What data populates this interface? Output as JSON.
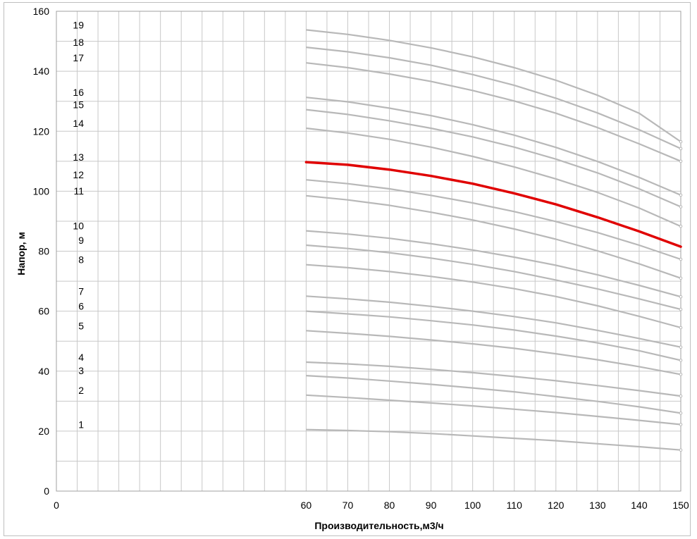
{
  "chart_data": {
    "type": "line",
    "title": "",
    "xlabel": "Производительность,м3/ч",
    "ylabel": "Напор, м",
    "xlim": [
      0,
      150
    ],
    "ylim": [
      0,
      160
    ],
    "grid": true,
    "x_ticks": [
      0,
      60,
      70,
      80,
      90,
      100,
      110,
      120,
      130,
      140,
      150
    ],
    "y_ticks": [
      0,
      20,
      40,
      60,
      80,
      100,
      120,
      140,
      160
    ],
    "x": [
      60,
      70,
      80,
      90,
      100,
      110,
      120,
      130,
      140,
      150
    ],
    "highlight_color": "#e00000",
    "line_color": "#b8b8b8",
    "series": [
      {
        "name": "1",
        "values": [
          20.5,
          20.2,
          19.8,
          19.2,
          18.4,
          17.6,
          16.8,
          15.8,
          14.8,
          13.7
        ]
      },
      {
        "name": "2",
        "values": [
          32,
          31.2,
          30.3,
          29.4,
          28.4,
          27.3,
          26.2,
          24.9,
          23.6,
          22.2
        ]
      },
      {
        "name": "3",
        "values": [
          38.5,
          37.7,
          36.7,
          35.6,
          34.4,
          33.1,
          31.5,
          29.9,
          28.1,
          26
        ]
      },
      {
        "name": "4",
        "values": [
          43,
          42.4,
          41.6,
          40.6,
          39.5,
          38.2,
          36.8,
          35.2,
          33.5,
          31.7
        ]
      },
      {
        "name": "5",
        "values": [
          53.5,
          52.6,
          51.6,
          50.4,
          49.1,
          47.6,
          45.8,
          43.8,
          41.5,
          38.9
        ]
      },
      {
        "name": "6",
        "values": [
          60,
          59.1,
          58.1,
          56.8,
          55.4,
          53.7,
          51.7,
          49.4,
          46.8,
          43.6
        ]
      },
      {
        "name": "7",
        "values": [
          65,
          64.1,
          63,
          61.6,
          60,
          58.2,
          56.1,
          53.6,
          50.9,
          48
        ]
      },
      {
        "name": "8",
        "values": [
          75.5,
          74.5,
          73.2,
          71.6,
          69.7,
          67.5,
          64.9,
          61.8,
          58.3,
          54.5
        ]
      },
      {
        "name": "9",
        "values": [
          82,
          80.9,
          79.5,
          77.7,
          75.6,
          73.2,
          70.4,
          67.4,
          64.1,
          60.6
        ]
      },
      {
        "name": "10",
        "values": [
          86.8,
          85.7,
          84.3,
          82.5,
          80.4,
          78,
          75.3,
          72.1,
          68.6,
          64.8
        ]
      },
      {
        "name": "11",
        "values": [
          98.5,
          97.1,
          95.3,
          93,
          90.4,
          87.4,
          84,
          80.1,
          75.8,
          71
        ]
      },
      {
        "name": "12",
        "values": [
          103.8,
          102.5,
          100.8,
          98.6,
          96.1,
          93.2,
          89.9,
          86.2,
          82,
          77.3
        ]
      },
      {
        "name": "13",
        "values": [
          109.7,
          108.8,
          107.2,
          105.1,
          102.5,
          99.3,
          95.6,
          91.3,
          86.6,
          81.5
        ],
        "highlight": true
      },
      {
        "name": "14",
        "values": [
          121,
          119.4,
          117.3,
          114.7,
          111.6,
          108.1,
          104.1,
          99.6,
          94.4,
          88.3
        ]
      },
      {
        "name": "15",
        "values": [
          127.2,
          125.6,
          123.5,
          121,
          118.1,
          114.7,
          110.7,
          106.1,
          100.8,
          94.8
        ]
      },
      {
        "name": "16",
        "values": [
          131.3,
          129.8,
          127.7,
          125.2,
          122.2,
          118.7,
          114.6,
          109.9,
          104.6,
          98.7
        ]
      },
      {
        "name": "17",
        "values": [
          142.8,
          141.2,
          139.1,
          136.6,
          133.6,
          130.1,
          126,
          121.2,
          115.8,
          110
        ]
      },
      {
        "name": "18",
        "values": [
          148,
          146.5,
          144.5,
          142,
          138.9,
          135.3,
          131,
          126.1,
          120.5,
          114.2
        ]
      },
      {
        "name": "19",
        "values": [
          153.8,
          152.3,
          150.3,
          147.8,
          144.8,
          141.2,
          137,
          132,
          126,
          116.5
        ]
      }
    ]
  }
}
